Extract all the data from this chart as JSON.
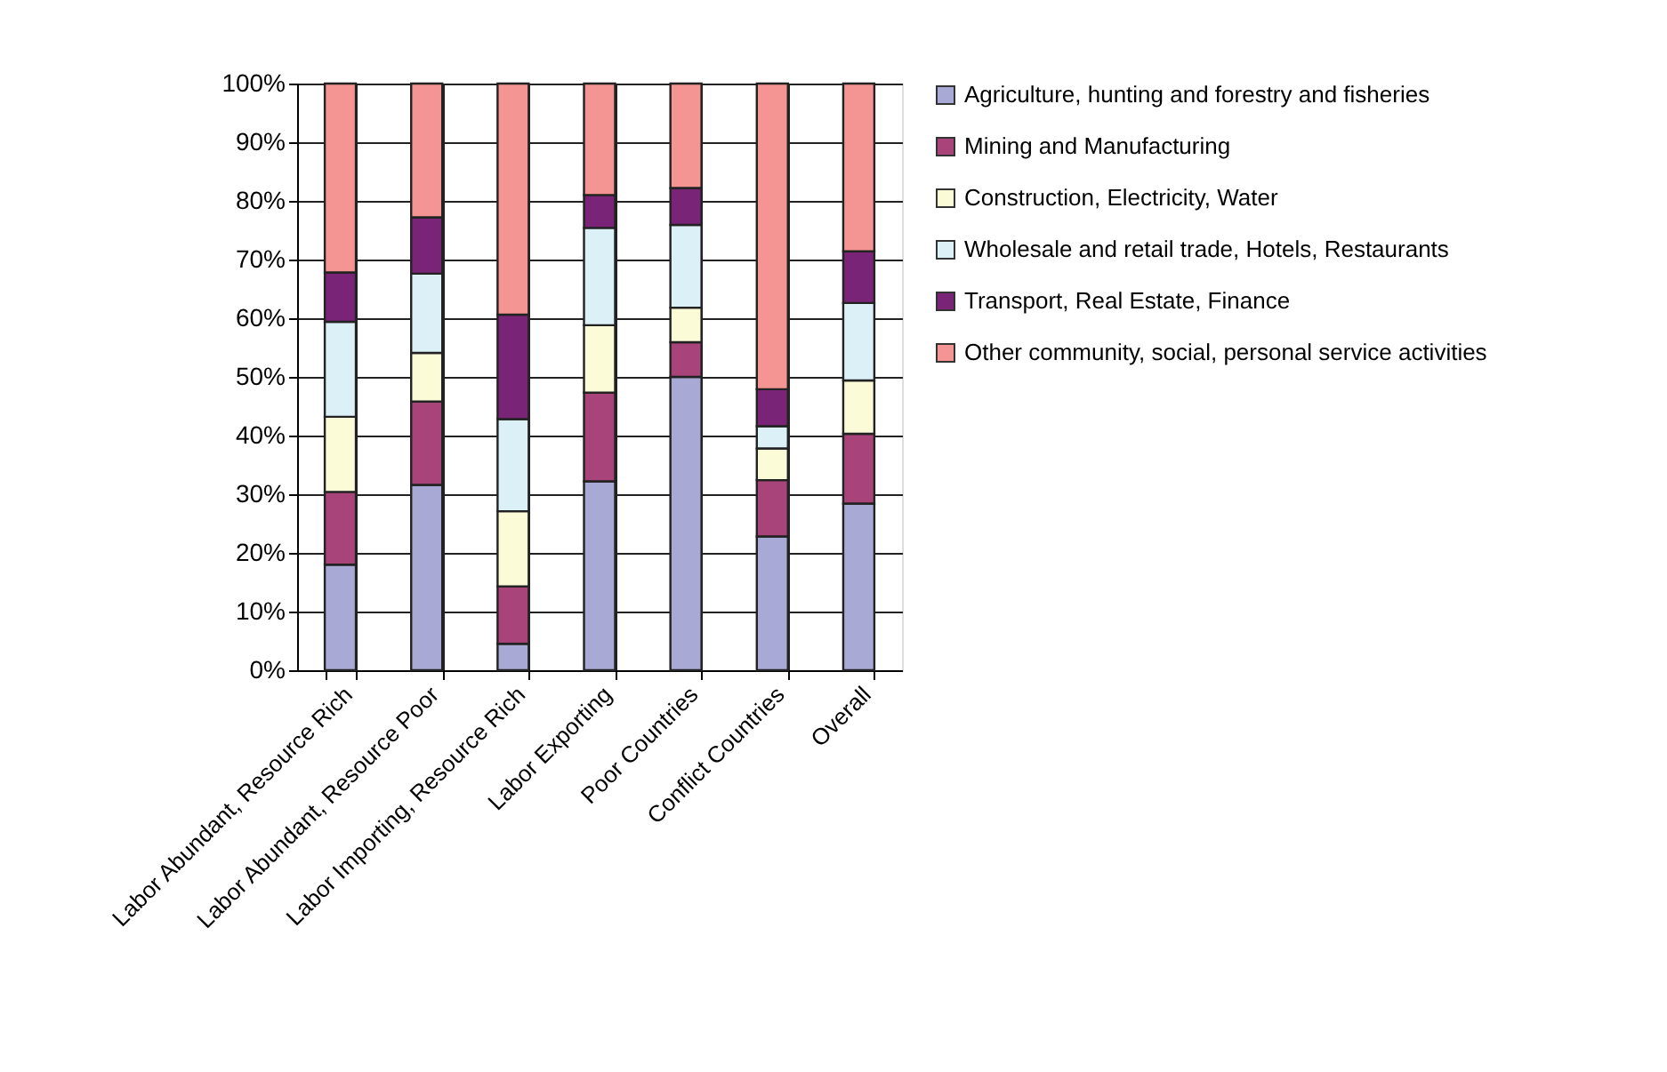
{
  "chart_data": {
    "type": "bar",
    "stacked": true,
    "categories": [
      "Labor Abundant, Resource Rich",
      "Labor Abundant, Resource Poor",
      "Labor Importing, Resource Rich",
      "Labor Exporting",
      "Poor Countries",
      "Conflict Countries",
      "Overall"
    ],
    "series": [
      {
        "name": "Agriculture, hunting and forestry and fisheries",
        "color": "#a9a9d6",
        "values": [
          18.0,
          31.6,
          4.5,
          32.2,
          50.0,
          22.8,
          28.4
        ]
      },
      {
        "name": "Mining and Manufacturing",
        "color": "#a8447a",
        "values": [
          12.4,
          14.2,
          9.8,
          15.1,
          5.9,
          9.6,
          11.9
        ]
      },
      {
        "name": "Construction, Electricity, Water",
        "color": "#fbfbd8",
        "values": [
          12.8,
          8.3,
          12.8,
          11.5,
          5.9,
          5.4,
          9.1
        ]
      },
      {
        "name": "Wholesale and retail trade, Hotels, Restaurants",
        "color": "#dcf0f8",
        "values": [
          16.2,
          13.5,
          15.7,
          16.6,
          14.1,
          3.8,
          13.2
        ]
      },
      {
        "name": "Transport, Real Estate, Finance",
        "color": "#7a2478",
        "values": [
          8.4,
          9.6,
          17.8,
          5.6,
          6.3,
          6.3,
          8.8
        ]
      },
      {
        "name": "Other community, social, personal service activities",
        "color": "#f59593",
        "values": [
          32.2,
          22.8,
          39.4,
          19.0,
          17.8,
          52.1,
          28.6
        ]
      }
    ],
    "ylim": [
      0,
      100
    ],
    "yticks": [
      {
        "value": 0,
        "label": "0%"
      },
      {
        "value": 10,
        "label": "10%"
      },
      {
        "value": 20,
        "label": "20%"
      },
      {
        "value": 30,
        "label": "30%"
      },
      {
        "value": 40,
        "label": "40%"
      },
      {
        "value": 50,
        "label": "50%"
      },
      {
        "value": 60,
        "label": "60%"
      },
      {
        "value": 70,
        "label": "70%"
      },
      {
        "value": 80,
        "label": "80%"
      },
      {
        "value": 90,
        "label": "90%"
      },
      {
        "value": 100,
        "label": "100%"
      }
    ],
    "grid": true,
    "legend": "right"
  }
}
